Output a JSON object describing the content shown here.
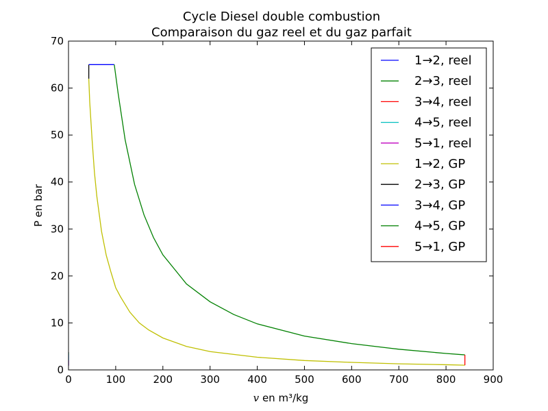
{
  "chart_data": {
    "type": "line",
    "title": "Cycle Diesel double combustion",
    "subtitle": "Comparaison du gaz reel et du gaz parfait",
    "xlabel_var": "v",
    "xlabel_unit": "en m³/kg",
    "ylabel": "P en bar",
    "xlim": [
      0,
      900
    ],
    "ylim": [
      0,
      70
    ],
    "xticks": [
      0,
      100,
      200,
      300,
      400,
      500,
      600,
      700,
      800,
      900
    ],
    "yticks": [
      0,
      10,
      20,
      30,
      40,
      50,
      60,
      70
    ],
    "grid": false,
    "legend_position": "top-right",
    "series": [
      {
        "name": "1→2, reel",
        "color": "#0000ff",
        "points": [
          [
            0,
            0.9
          ],
          [
            0,
            3.2
          ]
        ]
      },
      {
        "name": "2→3, reel",
        "color": "#008000",
        "points": [
          [
            0,
            3.2
          ],
          [
            0,
            3.6
          ]
        ]
      },
      {
        "name": "3→4, reel",
        "color": "#ff0000",
        "points": [
          [
            0,
            3.6
          ],
          [
            0,
            3.8
          ]
        ]
      },
      {
        "name": "4→5, reel",
        "color": "#00bfbf",
        "points": [
          [
            0,
            3.8
          ],
          [
            0,
            2.0
          ]
        ]
      },
      {
        "name": "5→1, reel",
        "color": "#bf00bf",
        "points": [
          [
            0,
            2.0
          ],
          [
            0,
            0.9
          ]
        ]
      },
      {
        "name": "1→2, GP",
        "color": "#bfbf00",
        "points": [
          [
            840,
            1
          ],
          [
            800,
            1.1
          ],
          [
            700,
            1.3
          ],
          [
            600,
            1.6
          ],
          [
            500,
            2.0
          ],
          [
            400,
            2.7
          ],
          [
            300,
            3.9
          ],
          [
            250,
            5.0
          ],
          [
            200,
            6.8
          ],
          [
            170,
            8.5
          ],
          [
            150,
            10.0
          ],
          [
            130,
            12.3
          ],
          [
            110,
            15.6
          ],
          [
            100,
            17.5
          ],
          [
            90,
            20.8
          ],
          [
            80,
            24.4
          ],
          [
            70,
            29.5
          ],
          [
            60,
            37.0
          ],
          [
            55,
            42.0
          ],
          [
            50,
            49.0
          ],
          [
            45,
            57.0
          ],
          [
            43,
            62.0
          ]
        ]
      },
      {
        "name": "2→3, GP",
        "color": "#000000",
        "points": [
          [
            43,
            62.0
          ],
          [
            43,
            65.0
          ]
        ]
      },
      {
        "name": "3→4, GP",
        "color": "#0000ff",
        "points": [
          [
            43,
            65.0
          ],
          [
            97,
            65.0
          ]
        ]
      },
      {
        "name": "4→5, GP",
        "color": "#008000",
        "points": [
          [
            97,
            65.0
          ],
          [
            105,
            59.0
          ],
          [
            120,
            49.0
          ],
          [
            140,
            39.5
          ],
          [
            160,
            33.0
          ],
          [
            180,
            28.2
          ],
          [
            200,
            24.5
          ],
          [
            250,
            18.3
          ],
          [
            300,
            14.5
          ],
          [
            350,
            11.8
          ],
          [
            400,
            9.8
          ],
          [
            500,
            7.2
          ],
          [
            600,
            5.6
          ],
          [
            700,
            4.4
          ],
          [
            800,
            3.5
          ],
          [
            840,
            3.2
          ]
        ]
      },
      {
        "name": "5→1, GP",
        "color": "#ff0000",
        "points": [
          [
            840,
            3.2
          ],
          [
            840,
            1.0
          ]
        ]
      }
    ]
  }
}
